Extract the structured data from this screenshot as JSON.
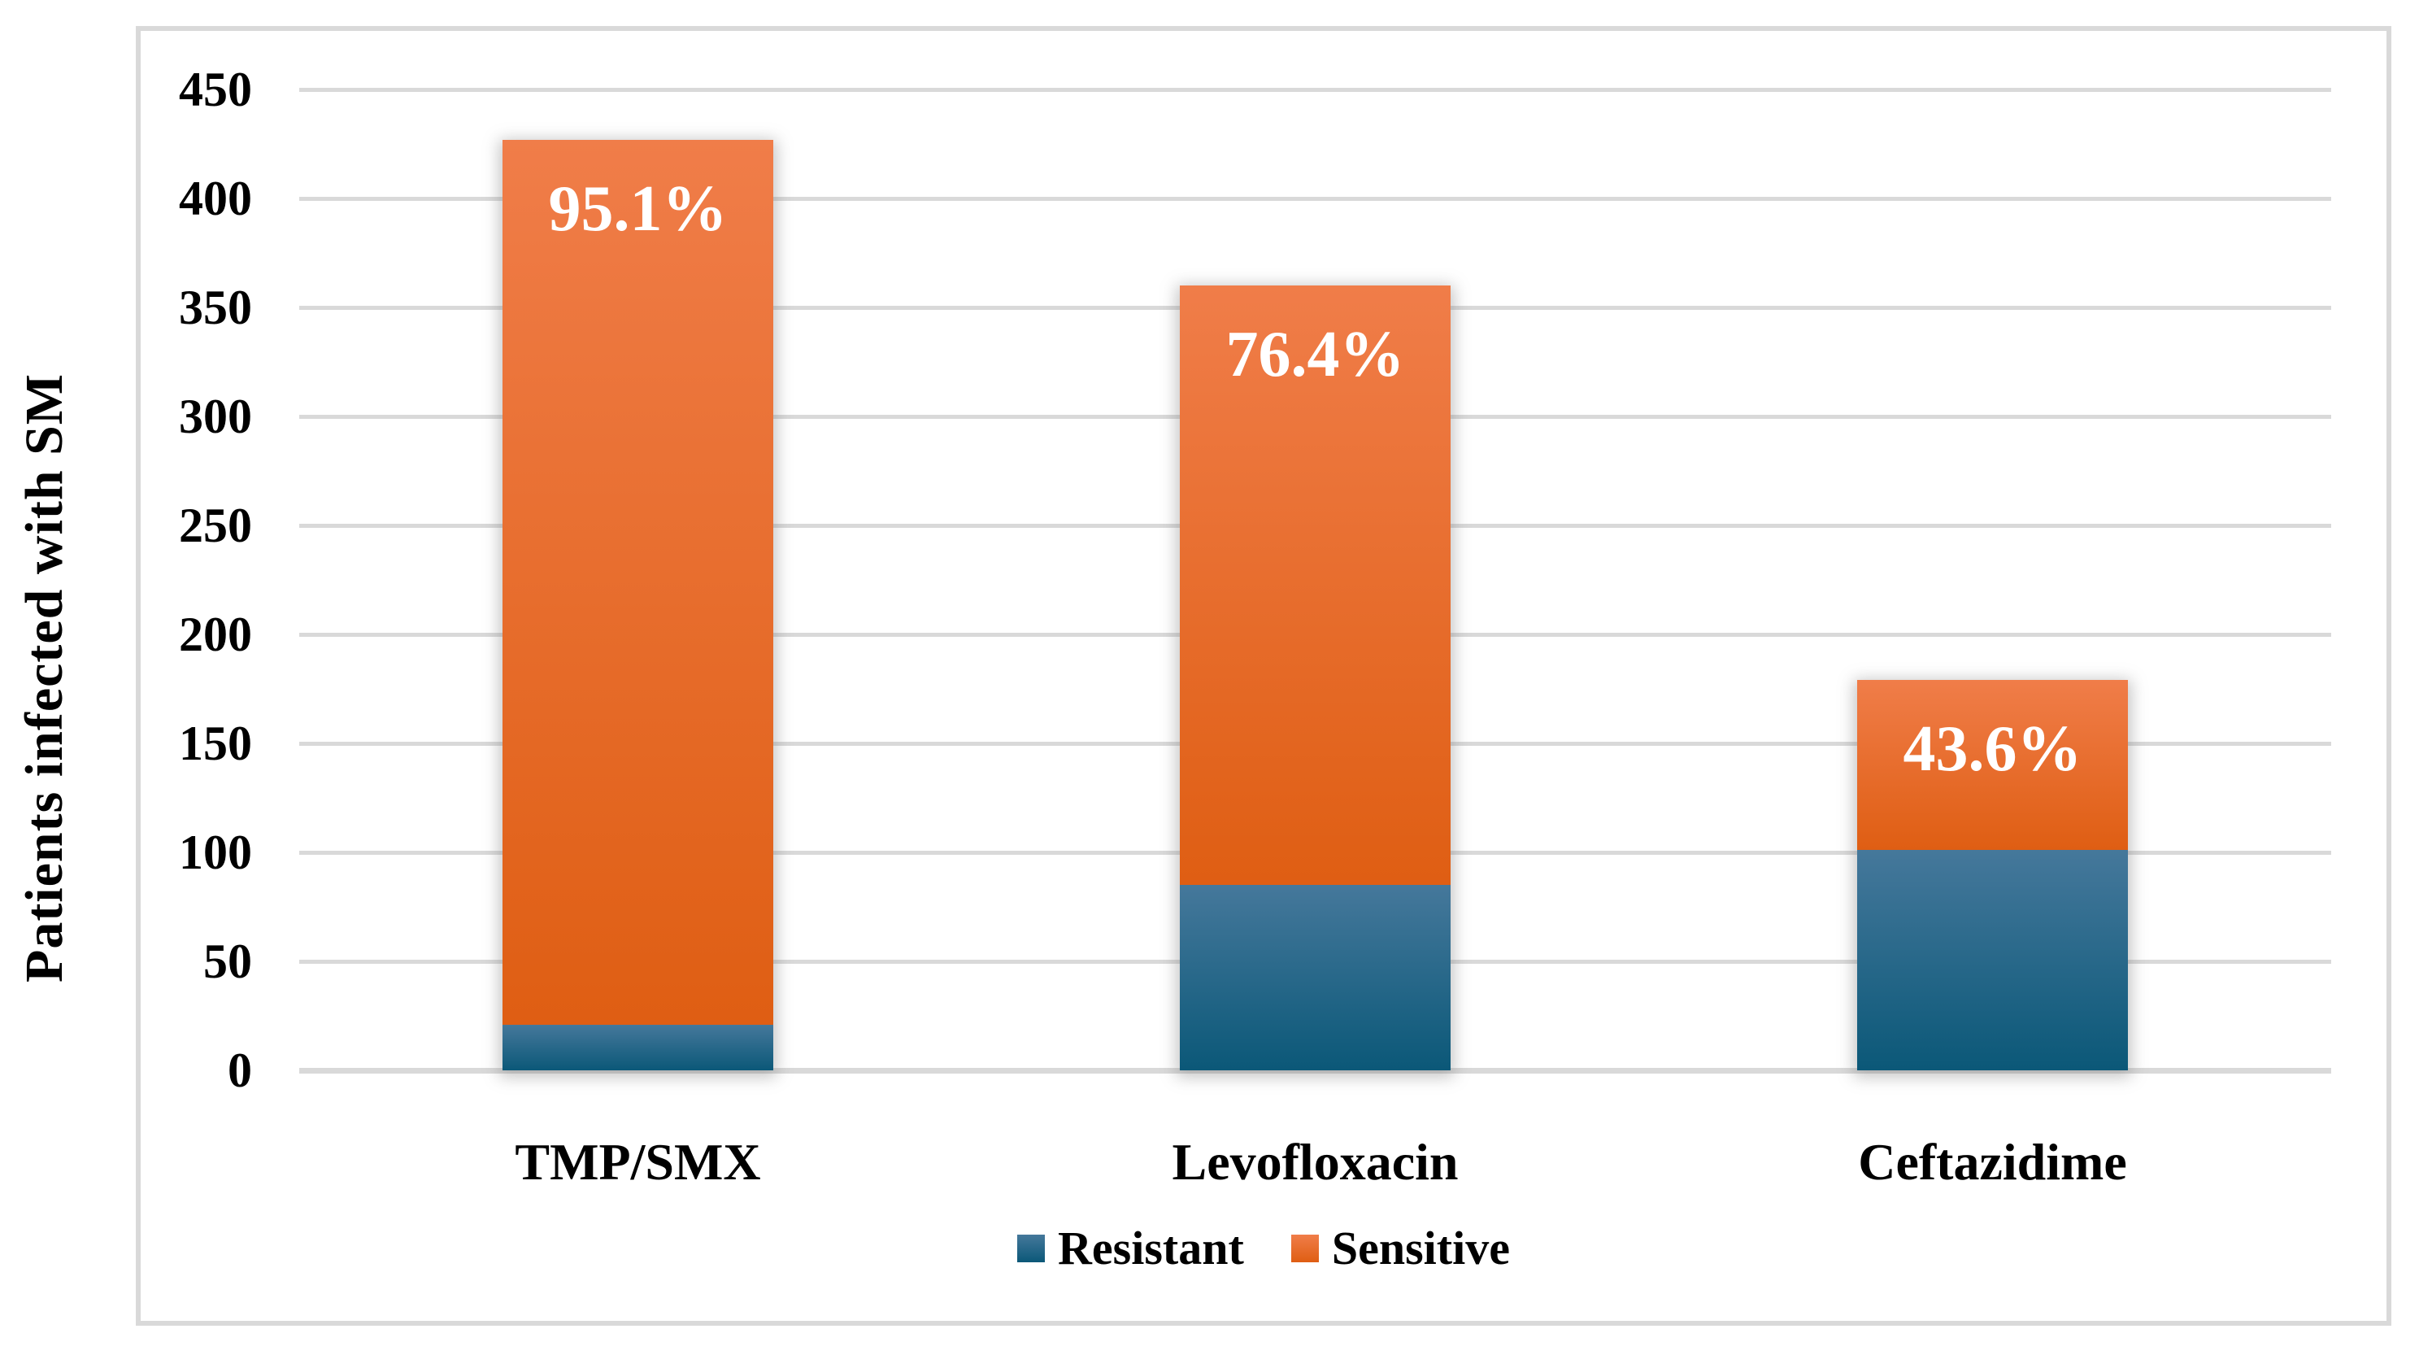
{
  "chart_data": {
    "type": "bar",
    "stacked": true,
    "title": "",
    "ylabel": "Patients infected with SM",
    "xlabel": "",
    "categories": [
      "TMP/SMX",
      "Levofloxacin",
      "Ceftazidime"
    ],
    "series": [
      {
        "name": "Resistant",
        "values": [
          21,
          85,
          101
        ],
        "color_top": "#45789B",
        "color_bottom": "#0B5878"
      },
      {
        "name": "Sensitive",
        "values": [
          406,
          275,
          78
        ],
        "color_top": "#F07D49",
        "color_bottom": "#DF5E13"
      }
    ],
    "totals": [
      427,
      360,
      179
    ],
    "bar_labels": [
      "95.1%",
      "76.4%",
      "43.6%"
    ],
    "bar_label_color": "#FFFFFF",
    "ylim": [
      0,
      450
    ],
    "yticks": [
      0,
      50,
      100,
      150,
      200,
      250,
      300,
      350,
      400,
      450
    ],
    "grid": true,
    "gridline_color": "#D9D9D9",
    "figure_border_color": "#D9D9D9",
    "legend_position": "bottom"
  }
}
